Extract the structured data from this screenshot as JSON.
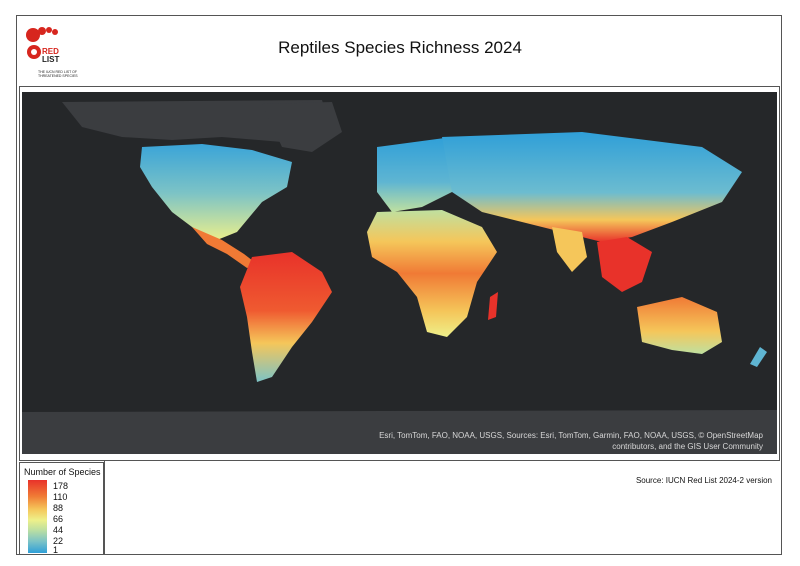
{
  "title": "Reptiles Species Richness 2024",
  "logo": {
    "text_line1": "RED",
    "text_line2": "LIST",
    "tagline": "THE IUCN RED LIST OF THREATENED SPECIES",
    "brand_color": "#d7261e"
  },
  "map": {
    "attribution_line1": "Esri, TomTom, FAO, NOAA, USGS, Sources: Esri, TomTom, Garmin, FAO, NOAA, USGS, © OpenStreetMap",
    "attribution_line2": "contributors, and the GIS User Community",
    "background_color": "#252729"
  },
  "legend": {
    "title": "Number of Species",
    "labels": [
      "178",
      "110",
      "88",
      "66",
      "44",
      "22",
      "1"
    ],
    "colors": [
      "#e8322a",
      "#f07a35",
      "#f5c65a",
      "#eef08a",
      "#bfe0a0",
      "#7cc3c6",
      "#2f9fd8"
    ]
  },
  "source": "Source: IUCN Red List 2024-2 version"
}
